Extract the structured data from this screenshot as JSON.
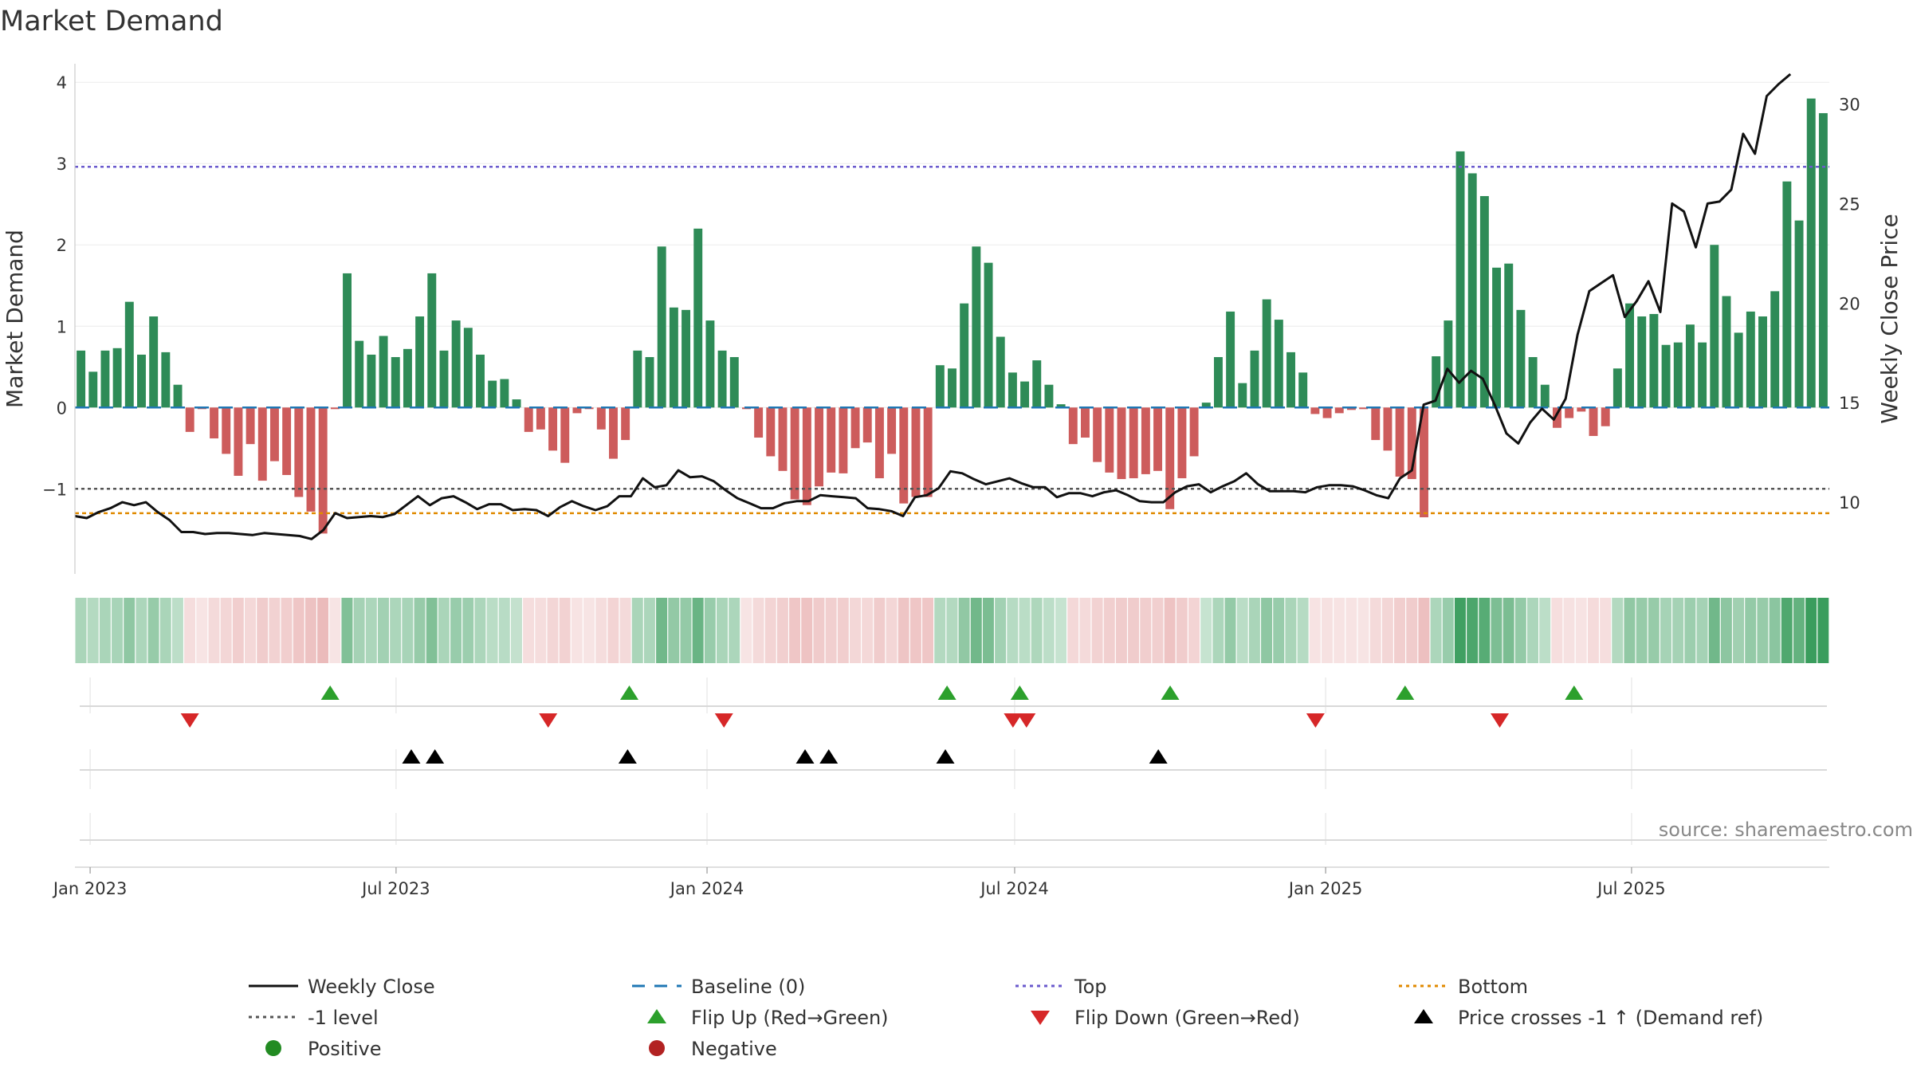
{
  "chart_data": {
    "type": "bar",
    "title": "Market Demand",
    "ylabel": "Market Demand",
    "y2label": "Weekly Close Price",
    "ylim": [
      -1.85,
      4.1
    ],
    "y_ticks": [
      4,
      3,
      2,
      1,
      0,
      -1
    ],
    "y2lim": [
      7.2,
      31.5
    ],
    "y2_ticks": [
      30,
      25,
      20,
      15,
      10
    ],
    "x_start": "2022-12-23",
    "x_step_days": 7,
    "x_end": "2025-10-26",
    "x_ticks": [
      {
        "label": "Jan 2023",
        "date": "2023-01-01"
      },
      {
        "label": "Jul 2023",
        "date": "2023-07-01"
      },
      {
        "label": "Jan 2024",
        "date": "2024-01-01"
      },
      {
        "label": "Jul 2024",
        "date": "2024-07-01"
      },
      {
        "label": "Jan 2025",
        "date": "2025-01-01"
      },
      {
        "label": "Jul 2025",
        "date": "2025-07-01"
      }
    ],
    "reference_lines": {
      "top": 2.96,
      "bottom": -1.3,
      "minus_one": -1,
      "baseline": 0
    },
    "demand": [
      0.7,
      0.44,
      0.7,
      0.73,
      1.3,
      0.65,
      1.12,
      0.68,
      0.28,
      -0.3,
      -0.02,
      -0.38,
      -0.57,
      -0.84,
      -0.45,
      -0.9,
      -0.66,
      -0.83,
      -1.1,
      -1.28,
      -1.55,
      -0.02,
      1.65,
      0.82,
      0.65,
      0.88,
      0.62,
      0.72,
      1.12,
      1.65,
      0.7,
      1.07,
      0.98,
      0.65,
      0.33,
      0.35,
      0.1,
      -0.3,
      -0.27,
      -0.53,
      -0.68,
      -0.07,
      -0.02,
      -0.27,
      -0.63,
      -0.4,
      0.7,
      0.62,
      1.98,
      1.23,
      1.2,
      2.2,
      1.07,
      0.7,
      0.62,
      -0.02,
      -0.37,
      -0.6,
      -0.78,
      -1.13,
      -1.2,
      -0.97,
      -0.8,
      -0.81,
      -0.5,
      -0.43,
      -0.87,
      -0.57,
      -1.18,
      -1.1,
      -1.1,
      0.52,
      0.48,
      1.28,
      1.98,
      1.78,
      0.87,
      0.43,
      0.32,
      0.58,
      0.28,
      0.04,
      -0.45,
      -0.37,
      -0.67,
      -0.8,
      -0.88,
      -0.87,
      -0.82,
      -0.78,
      -1.25,
      -0.87,
      -0.6,
      0.06,
      0.62,
      1.18,
      0.3,
      0.7,
      1.33,
      1.08,
      0.68,
      0.43,
      -0.08,
      -0.13,
      -0.07,
      -0.03,
      -0.02,
      -0.4,
      -0.53,
      -0.85,
      -0.88,
      -1.35,
      0.63,
      1.07,
      3.15,
      2.88,
      2.6,
      1.72,
      1.77,
      1.2,
      0.62,
      0.28,
      -0.25,
      -0.13,
      -0.05,
      -0.35,
      -0.23,
      0.48,
      1.28,
      1.12,
      1.15,
      0.77,
      0.8,
      1.02,
      0.8,
      2.0,
      1.37,
      0.92,
      1.18,
      1.12,
      1.43,
      2.78,
      2.3,
      3.8,
      3.62
    ],
    "price_series": [
      [
        "2022-12-23",
        9.3
      ],
      [
        "2022-12-30",
        9.2
      ],
      [
        "2023-01-06",
        9.5
      ],
      [
        "2023-01-13",
        9.7
      ],
      [
        "2023-01-20",
        10.0
      ],
      [
        "2023-01-27",
        9.85
      ],
      [
        "2023-02-03",
        10.0
      ],
      [
        "2023-02-10",
        9.5
      ],
      [
        "2023-02-17",
        9.1
      ],
      [
        "2023-02-24",
        8.5
      ],
      [
        "2023-03-03",
        8.5
      ],
      [
        "2023-03-10",
        8.4
      ],
      [
        "2023-03-17",
        8.45
      ],
      [
        "2023-03-24",
        8.45
      ],
      [
        "2023-03-31",
        8.4
      ],
      [
        "2023-04-07",
        8.35
      ],
      [
        "2023-04-14",
        8.45
      ],
      [
        "2023-04-21",
        8.4
      ],
      [
        "2023-04-28",
        8.35
      ],
      [
        "2023-05-05",
        8.3
      ],
      [
        "2023-05-12",
        8.15
      ],
      [
        "2023-05-19",
        8.6
      ],
      [
        "2023-05-26",
        9.45
      ],
      [
        "2023-06-02",
        9.2
      ],
      [
        "2023-06-09",
        9.25
      ],
      [
        "2023-06-16",
        9.3
      ],
      [
        "2023-06-23",
        9.25
      ],
      [
        "2023-06-30",
        9.4
      ],
      [
        "2023-07-07",
        9.85
      ],
      [
        "2023-07-14",
        10.3
      ],
      [
        "2023-07-21",
        9.85
      ],
      [
        "2023-07-28",
        10.2
      ],
      [
        "2023-08-04",
        10.3
      ],
      [
        "2023-08-11",
        10.0
      ],
      [
        "2023-08-18",
        9.65
      ],
      [
        "2023-08-25",
        9.9
      ],
      [
        "2023-09-01",
        9.9
      ],
      [
        "2023-09-08",
        9.6
      ],
      [
        "2023-09-15",
        9.65
      ],
      [
        "2023-09-22",
        9.6
      ],
      [
        "2023-09-29",
        9.3
      ],
      [
        "2023-10-06",
        9.75
      ],
      [
        "2023-10-13",
        10.05
      ],
      [
        "2023-10-20",
        9.8
      ],
      [
        "2023-10-27",
        9.6
      ],
      [
        "2023-11-03",
        9.8
      ],
      [
        "2023-11-10",
        10.3
      ],
      [
        "2023-11-17",
        10.3
      ],
      [
        "2023-11-24",
        11.2
      ],
      [
        "2023-12-01",
        10.75
      ],
      [
        "2023-12-08",
        10.85
      ],
      [
        "2023-12-15",
        11.6
      ],
      [
        "2023-12-22",
        11.25
      ],
      [
        "2023-12-29",
        11.3
      ],
      [
        "2024-01-05",
        11.05
      ],
      [
        "2024-01-12",
        10.6
      ],
      [
        "2024-01-19",
        10.2
      ],
      [
        "2024-01-26",
        9.95
      ],
      [
        "2024-02-02",
        9.7
      ],
      [
        "2024-02-09",
        9.7
      ],
      [
        "2024-02-16",
        9.95
      ],
      [
        "2024-02-23",
        10.05
      ],
      [
        "2024-03-01",
        10.05
      ],
      [
        "2024-03-08",
        10.35
      ],
      [
        "2024-03-15",
        10.3
      ],
      [
        "2024-03-22",
        10.25
      ],
      [
        "2024-03-29",
        10.2
      ],
      [
        "2024-04-05",
        9.7
      ],
      [
        "2024-04-12",
        9.65
      ],
      [
        "2024-04-19",
        9.55
      ],
      [
        "2024-04-26",
        9.3
      ],
      [
        "2024-05-03",
        10.25
      ],
      [
        "2024-05-10",
        10.35
      ],
      [
        "2024-05-17",
        10.7
      ],
      [
        "2024-05-24",
        11.55
      ],
      [
        "2024-05-31",
        11.45
      ],
      [
        "2024-06-07",
        11.15
      ],
      [
        "2024-06-14",
        10.9
      ],
      [
        "2024-06-21",
        11.05
      ],
      [
        "2024-06-28",
        11.2
      ],
      [
        "2024-07-05",
        10.95
      ],
      [
        "2024-07-12",
        10.75
      ],
      [
        "2024-07-19",
        10.75
      ],
      [
        "2024-07-26",
        10.25
      ],
      [
        "2024-08-02",
        10.45
      ],
      [
        "2024-08-09",
        10.45
      ],
      [
        "2024-08-16",
        10.3
      ],
      [
        "2024-08-23",
        10.5
      ],
      [
        "2024-08-30",
        10.6
      ],
      [
        "2024-09-06",
        10.35
      ],
      [
        "2024-09-13",
        10.05
      ],
      [
        "2024-09-20",
        10.0
      ],
      [
        "2024-09-27",
        10.0
      ],
      [
        "2024-10-04",
        10.5
      ],
      [
        "2024-10-11",
        10.8
      ],
      [
        "2024-10-18",
        10.9
      ],
      [
        "2024-10-25",
        10.5
      ],
      [
        "2024-11-01",
        10.8
      ],
      [
        "2024-11-08",
        11.05
      ],
      [
        "2024-11-15",
        11.45
      ],
      [
        "2024-11-22",
        10.9
      ],
      [
        "2024-11-29",
        10.55
      ],
      [
        "2024-12-06",
        10.55
      ],
      [
        "2024-12-13",
        10.55
      ],
      [
        "2024-12-20",
        10.5
      ],
      [
        "2024-12-27",
        10.75
      ],
      [
        "2025-01-03",
        10.85
      ],
      [
        "2025-01-10",
        10.85
      ],
      [
        "2025-01-17",
        10.8
      ],
      [
        "2025-01-24",
        10.6
      ],
      [
        "2025-01-31",
        10.35
      ],
      [
        "2025-02-07",
        10.2
      ],
      [
        "2025-02-14",
        11.2
      ],
      [
        "2025-02-21",
        11.6
      ],
      [
        "2025-02-28",
        14.9
      ],
      [
        "2025-03-07",
        15.1
      ],
      [
        "2025-03-14",
        16.7
      ],
      [
        "2025-03-21",
        16.0
      ],
      [
        "2025-03-28",
        16.6
      ],
      [
        "2025-04-04",
        16.2
      ],
      [
        "2025-04-11",
        14.9
      ],
      [
        "2025-04-18",
        13.45
      ],
      [
        "2025-04-25",
        12.95
      ],
      [
        "2025-05-02",
        14.0
      ],
      [
        "2025-05-09",
        14.7
      ],
      [
        "2025-05-16",
        14.15
      ],
      [
        "2025-05-23",
        15.2
      ],
      [
        "2025-05-30",
        18.4
      ],
      [
        "2025-06-06",
        20.6
      ],
      [
        "2025-06-13",
        21.0
      ],
      [
        "2025-06-20",
        21.4
      ],
      [
        "2025-06-27",
        19.3
      ],
      [
        "2025-07-04",
        20.1
      ],
      [
        "2025-07-11",
        21.1
      ],
      [
        "2025-07-18",
        19.55
      ],
      [
        "2025-07-25",
        25.0
      ],
      [
        "2025-08-01",
        24.6
      ],
      [
        "2025-08-08",
        22.8
      ],
      [
        "2025-08-15",
        25.0
      ],
      [
        "2025-08-22",
        25.1
      ],
      [
        "2025-08-29",
        25.7
      ],
      [
        "2025-09-05",
        28.5
      ],
      [
        "2025-09-12",
        27.5
      ],
      [
        "2025-09-19",
        30.4
      ],
      [
        "2025-09-26",
        31.0
      ],
      [
        "2025-10-03",
        31.5
      ]
    ],
    "flip_up_dates": [
      "2023-05-23",
      "2023-11-16",
      "2024-05-22",
      "2024-07-04",
      "2024-10-01",
      "2025-02-17",
      "2025-05-28"
    ],
    "flip_down_dates": [
      "2023-03-01",
      "2023-09-29",
      "2024-01-42",
      "2024-07-01",
      "2024-07-12",
      "2025-01-07",
      "2025-04-14"
    ],
    "flip_down_resolved": [
      "2023-03-01",
      "2023-09-29",
      "2024-01-11",
      "2024-06-30",
      "2024-07-08",
      "2024-12-26",
      "2025-04-14"
    ],
    "price_cross_dates": [
      "2023-07-10",
      "2023-07-24",
      "2023-11-15",
      "2024-02-28",
      "2024-03-13",
      "2024-05-21",
      "2024-09-24"
    ],
    "source": "source: sharemaestro.com",
    "legend": [
      {
        "label": "Weekly Close",
        "kind": "line",
        "color": "#111111"
      },
      {
        "label": "Baseline (0)",
        "kind": "dashed",
        "color": "#1f77b4"
      },
      {
        "label": "Top",
        "kind": "dotted",
        "color": "#6a5acd"
      },
      {
        "label": "Bottom",
        "kind": "dotted",
        "color": "#e08a00"
      },
      {
        "label": "-1 level",
        "kind": "dotted",
        "color": "#555555"
      },
      {
        "label": "Flip Up (Red→Green)",
        "kind": "tri-up",
        "color": "#2ca02c"
      },
      {
        "label": "Flip Down (Green→Red)",
        "kind": "tri-down",
        "color": "#d62728"
      },
      {
        "label": "Price crosses -1 ↑ (Demand ref)",
        "kind": "tri-up",
        "color": "#000000"
      },
      {
        "label": "Positive",
        "kind": "dot",
        "color": "#228b22"
      },
      {
        "label": "Negative",
        "kind": "dot",
        "color": "#b22222"
      }
    ],
    "colors": {
      "positive_bar": "#2e8b57",
      "negative_bar": "#cd5c5c",
      "price_line": "#111111",
      "top_line": "#6a5acd",
      "bottom_line": "#e08a00",
      "minus_one_line": "#555555",
      "baseline": "#1f77b4",
      "strip_positive": "#3a9d5d",
      "strip_negative": "#d46a6a"
    }
  }
}
